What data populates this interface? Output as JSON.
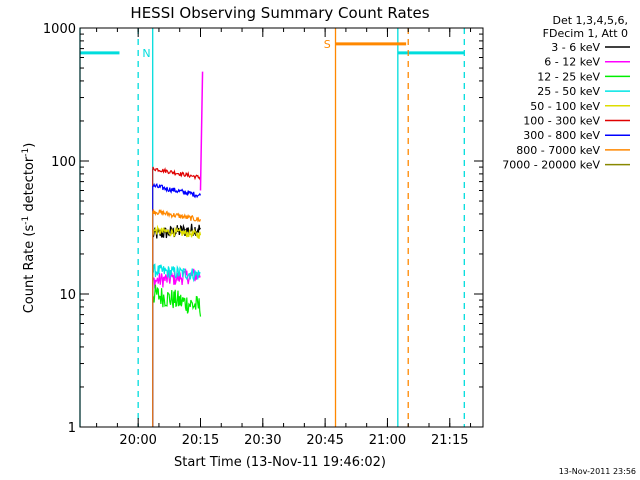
{
  "chart_data": {
    "type": "line",
    "title": "HESSI Observing Summary Count Rates",
    "xlabel": "Start Time (13-Nov-11 19:46:02)",
    "ylabel_prefix": "Count Rate (s",
    "ylabel_sup1": "-1",
    "ylabel_mid": " detector",
    "ylabel_sup2": "-1",
    "ylabel_suffix": ")",
    "x_unit": "minutes since 19:46:02",
    "xlim": [
      0,
      97
    ],
    "ylim": [
      1,
      1000
    ],
    "yscale": "log",
    "x_ticks": [
      {
        "t": 14,
        "label": "20:00"
      },
      {
        "t": 29,
        "label": "20:15"
      },
      {
        "t": 44,
        "label": "20:30"
      },
      {
        "t": 59,
        "label": "20:45"
      },
      {
        "t": 74,
        "label": "21:00"
      },
      {
        "t": 89,
        "label": "21:15"
      }
    ],
    "y_ticks": [
      {
        "v": 1,
        "label": "1"
      },
      {
        "v": 10,
        "label": "10"
      },
      {
        "v": 100,
        "label": "100"
      },
      {
        "v": 1000,
        "label": "1000"
      }
    ],
    "legend_header": [
      "Det 1,3,4,5,6,",
      "FDecim 1, Att 0"
    ],
    "legend_placement": "right",
    "series": [
      {
        "name": "3 - 6 keV",
        "color": "#000000",
        "x": [
          17.5,
          29.0
        ],
        "y": [
          28,
          31
        ],
        "jitter": 0.05
      },
      {
        "name": "6 - 12 keV",
        "color": "#ff00ff",
        "x": [
          17.5,
          29.0
        ],
        "y": [
          12.5,
          14
        ],
        "jitter": 0.06
      },
      {
        "name": "12 - 25 keV",
        "color": "#00ee00",
        "x": [
          17.5,
          29.0
        ],
        "y": [
          10.0,
          8.0
        ],
        "jitter": 0.08
      },
      {
        "name": "25 - 50 keV",
        "color": "#00e5e5",
        "x": [
          17.5,
          29.0
        ],
        "y": [
          15,
          14
        ],
        "jitter": 0.05
      },
      {
        "name": "50 - 100 keV",
        "color": "#dddd00",
        "x": [
          17.5,
          29.0
        ],
        "y": [
          30,
          28
        ],
        "jitter": 0.03
      },
      {
        "name": "100 - 300 keV",
        "color": "#e00000",
        "x": [
          17.5,
          29.0
        ],
        "y": [
          88,
          75
        ],
        "jitter": 0.015
      },
      {
        "name": "300 - 800 keV",
        "color": "#0000ff",
        "x": [
          17.5,
          29.0
        ],
        "y": [
          65,
          55
        ],
        "jitter": 0.02
      },
      {
        "name": "800 - 7000 keV",
        "color": "#ff8800",
        "x": [
          17.5,
          29.0
        ],
        "y": [
          42,
          36
        ],
        "jitter": 0.02
      },
      {
        "name": "7000 - 20000 keV",
        "color": "#888800",
        "x": [
          17.5,
          29.0
        ],
        "y": [
          1,
          1
        ],
        "jitter": 0
      }
    ],
    "flare_tail": {
      "color": "#ff00ff",
      "x": [
        29.0,
        29.5
      ],
      "y": [
        60,
        470
      ]
    },
    "flags": [
      {
        "label": "N",
        "color": "#00dddd",
        "y": 650,
        "segments": [
          [
            0,
            9.5
          ],
          [
            76.5,
            92.5
          ]
        ],
        "verticals": [
          {
            "t": 14.0,
            "style": "dashed"
          },
          {
            "t": 92.5,
            "style": "dashed"
          },
          {
            "t": 0,
            "style": "solid"
          },
          {
            "t": 76.5,
            "style": "solid"
          },
          {
            "t": 17.5,
            "style": "solid"
          }
        ],
        "label_t": 16.0
      },
      {
        "label": "S",
        "color": "#ff8800",
        "y": 760,
        "segments": [
          [
            61.5,
            78.5
          ]
        ],
        "verticals": [
          {
            "t": 61.5,
            "style": "solid"
          },
          {
            "t": 79.0,
            "style": "dashed"
          }
        ],
        "label_t": 59.5
      }
    ]
  },
  "footer_timestamp": "13-Nov-2011 23:56"
}
